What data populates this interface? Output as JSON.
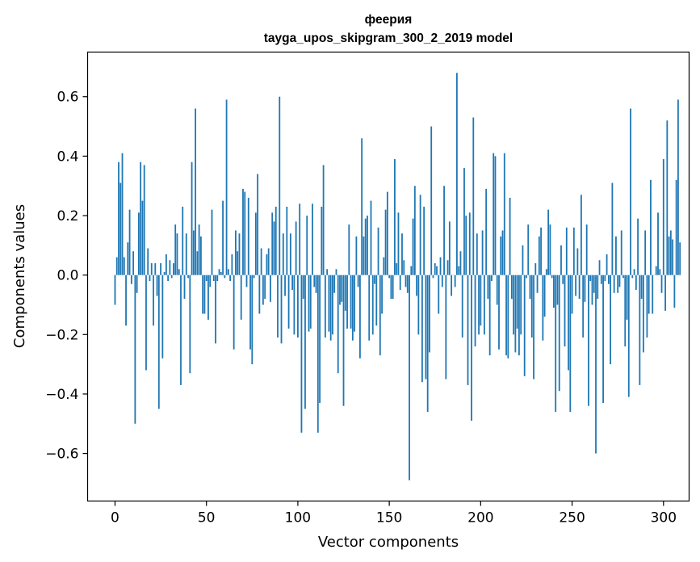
{
  "chart_data": {
    "type": "bar",
    "title_line1": "феерия",
    "title_line2": "tayga_upos_skipgram_300_2_2019 model",
    "xlabel": "Vector components",
    "ylabel": "Components values",
    "xlim": [
      -15,
      314
    ],
    "ylim": [
      -0.76,
      0.75
    ],
    "xticks": [
      0,
      50,
      100,
      150,
      200,
      250,
      300
    ],
    "yticks": [
      -0.6,
      -0.4,
      -0.2,
      0.0,
      0.2,
      0.4,
      0.6
    ],
    "ytick_labels": [
      "−0.6",
      "−0.4",
      "−0.2",
      "0.0",
      "0.2",
      "0.4",
      "0.6"
    ],
    "bar_color": "#1f77b4",
    "grid": false,
    "values": [
      -0.1,
      0.06,
      0.38,
      0.31,
      0.41,
      0.06,
      -0.17,
      0.11,
      0.22,
      -0.03,
      0.08,
      -0.5,
      -0.06,
      0.21,
      0.38,
      0.25,
      0.37,
      -0.32,
      0.09,
      -0.02,
      0.04,
      -0.17,
      0.04,
      -0.07,
      -0.45,
      0.04,
      -0.28,
      0.01,
      0.07,
      -0.02,
      0.05,
      -0.01,
      0.04,
      0.17,
      0.14,
      0.02,
      -0.37,
      0.23,
      -0.08,
      0.14,
      -0.01,
      -0.33,
      0.38,
      0.15,
      0.56,
      0.08,
      0.17,
      0.13,
      -0.13,
      -0.13,
      -0.02,
      -0.15,
      -0.04,
      0.22,
      -0.02,
      -0.23,
      -0.02,
      0.02,
      0.01,
      0.25,
      -0.01,
      0.59,
      0.02,
      -0.02,
      0.07,
      -0.25,
      0.15,
      0.08,
      0.14,
      -0.15,
      0.29,
      0.28,
      -0.04,
      0.26,
      -0.25,
      -0.3,
      -0.01,
      0.21,
      0.34,
      -0.13,
      0.09,
      -0.1,
      -0.08,
      0.07,
      0.09,
      -0.09,
      0.21,
      0.18,
      0.23,
      -0.21,
      0.6,
      -0.23,
      0.14,
      -0.07,
      0.23,
      -0.18,
      0.14,
      -0.05,
      -0.2,
      0.18,
      -0.21,
      0.24,
      -0.53,
      -0.08,
      -0.45,
      0.2,
      -0.19,
      -0.18,
      0.24,
      -0.04,
      -0.06,
      -0.53,
      -0.43,
      0.23,
      0.37,
      -0.21,
      0.02,
      -0.19,
      -0.22,
      -0.2,
      -0.06,
      0.02,
      -0.33,
      -0.1,
      -0.09,
      -0.44,
      -0.12,
      -0.18,
      0.17,
      -0.18,
      -0.22,
      -0.19,
      0.13,
      -0.04,
      -0.28,
      0.46,
      0.13,
      0.19,
      0.2,
      -0.22,
      0.25,
      -0.2,
      -0.03,
      -0.17,
      0.16,
      -0.27,
      -0.13,
      0.06,
      0.22,
      0.28,
      -0.01,
      -0.08,
      -0.08,
      0.39,
      0.04,
      0.21,
      -0.05,
      0.14,
      0.05,
      -0.04,
      -0.06,
      -0.69,
      0.03,
      0.19,
      0.3,
      -0.07,
      -0.2,
      0.27,
      -0.36,
      0.23,
      -0.35,
      -0.46,
      -0.26,
      0.5,
      -0.01,
      0.04,
      0.03,
      -0.13,
      0.06,
      -0.04,
      0.3,
      -0.35,
      0.05,
      0.18,
      -0.07,
      0.0,
      -0.04,
      0.68,
      0.03,
      0.08,
      -0.21,
      0.36,
      0.2,
      -0.37,
      0.21,
      -0.49,
      0.53,
      -0.24,
      0.14,
      -0.2,
      -0.17,
      0.15,
      -0.2,
      0.29,
      -0.08,
      -0.27,
      -0.02,
      0.41,
      0.4,
      -0.1,
      -0.25,
      0.13,
      0.15,
      0.41,
      -0.27,
      -0.28,
      0.26,
      -0.08,
      -0.2,
      -0.26,
      -0.18,
      -0.27,
      -0.2,
      0.1,
      -0.34,
      -0.01,
      0.17,
      -0.08,
      -0.21,
      -0.35,
      0.04,
      -0.06,
      0.13,
      0.16,
      -0.22,
      -0.14,
      0.02,
      0.22,
      0.17,
      -0.01,
      -0.11,
      -0.46,
      -0.1,
      -0.39,
      0.1,
      -0.03,
      -0.24,
      0.16,
      -0.32,
      -0.46,
      -0.13,
      0.16,
      -0.07,
      0.09,
      -0.08,
      0.27,
      -0.21,
      -0.09,
      0.17,
      -0.44,
      -0.02,
      -0.1,
      -0.06,
      -0.6,
      -0.08,
      0.05,
      -0.03,
      -0.43,
      -0.02,
      0.07,
      -0.03,
      -0.3,
      0.31,
      -0.06,
      0.13,
      -0.06,
      -0.04,
      0.15,
      -0.01,
      -0.24,
      -0.15,
      -0.41,
      0.56,
      -0.01,
      0.02,
      -0.05,
      0.19,
      -0.37,
      -0.08,
      -0.26,
      0.15,
      -0.21,
      -0.13,
      0.32,
      -0.13,
      0.0,
      0.03,
      0.21,
      0.02,
      -0.06,
      0.39,
      -0.12,
      0.52,
      0.13,
      0.15,
      0.12,
      -0.11,
      0.32,
      0.59,
      0.11
    ]
  }
}
